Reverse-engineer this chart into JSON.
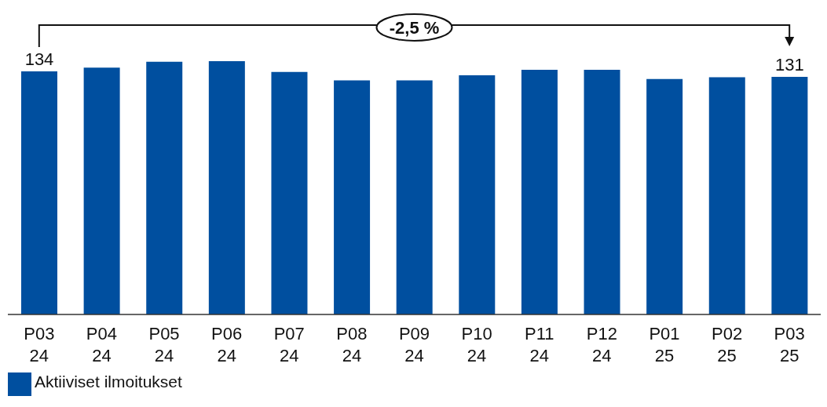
{
  "chart_data": {
    "type": "bar",
    "categories": [
      "P03 24",
      "P04 24",
      "P05 24",
      "P06 24",
      "P07 24",
      "P08 24",
      "P09 24",
      "P10 24",
      "P11 24",
      "P12 24",
      "P01 25",
      "P02 25",
      "P03 25"
    ],
    "series": [
      {
        "name": "Aktiiviset ilmoitukset",
        "color": "#004f9f",
        "values": [
          134,
          136,
          139.3,
          139.6,
          133.7,
          129,
          129,
          131.8,
          134.8,
          134.8,
          129.8,
          130.7,
          131
        ],
        "value_labels": [
          "134",
          null,
          null,
          null,
          null,
          null,
          null,
          null,
          null,
          null,
          null,
          null,
          "131"
        ]
      }
    ],
    "annotations": [
      "-2,5 %"
    ],
    "legend": "bottom left"
  }
}
